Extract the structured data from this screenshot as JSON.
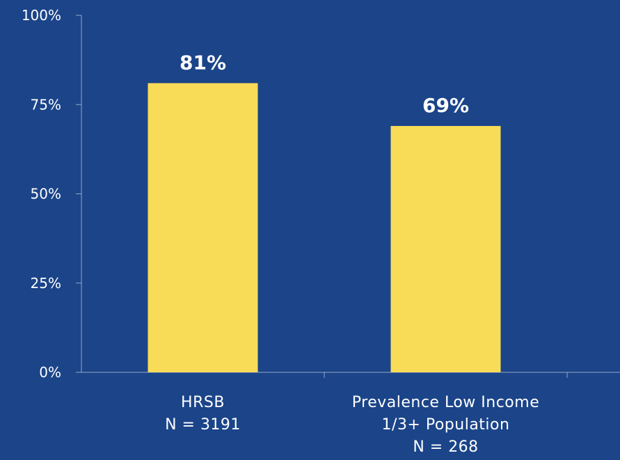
{
  "chart_data": {
    "type": "bar",
    "categories": [
      [
        "HRSB",
        "N = 3191"
      ],
      [
        "Prevalence Low Income",
        "1/3+ Population",
        "N = 268"
      ]
    ],
    "values": [
      81,
      69
    ],
    "data_labels": [
      "81%",
      "69%"
    ],
    "ylim": [
      0,
      100
    ],
    "y_ticks": [
      0,
      25,
      50,
      75,
      100
    ],
    "y_tick_labels": [
      "0%",
      "25%",
      "50%",
      "75%",
      "100%"
    ],
    "title": "",
    "xlabel": "",
    "ylabel": "",
    "grid": false,
    "legend": "none"
  },
  "colors": {
    "background": "#1b4489",
    "bar": "#f8dc57",
    "axis": "#9aa9c6",
    "text": "#ffffff"
  }
}
